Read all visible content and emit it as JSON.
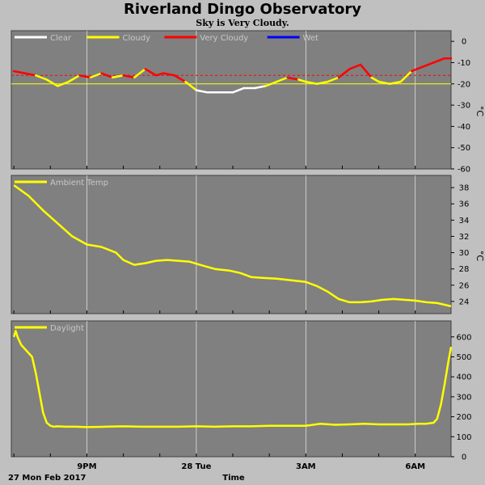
{
  "title": "Riverland Dingo Observatory",
  "subtitle": "Sky is Very Cloudy.",
  "x_axis": {
    "label": "Time",
    "date_label": "27 Mon Feb 2017",
    "ticks": [
      {
        "label": "9PM",
        "hour": 21
      },
      {
        "label": "28 Tue",
        "hour": 24
      },
      {
        "label": "3AM",
        "hour": 27
      },
      {
        "label": "6AM",
        "hour": 30
      }
    ],
    "hour_range": [
      18.93,
      30.98
    ]
  },
  "colors": {
    "background": "#c0c0c0",
    "plot_bg": "#808080",
    "grid": "#ffffff",
    "clear": "#ffffff",
    "cloudy": "#ffff00",
    "very_cloudy": "#ff0000",
    "wet": "#0000ff",
    "threshold": "#ff0000"
  },
  "chart_data": [
    {
      "type": "line",
      "name": "sky",
      "unit": "°C",
      "ylim": [
        -60,
        5
      ],
      "yticks": [
        0,
        -10,
        -20,
        -30,
        -40,
        -50,
        -60
      ],
      "legend": [
        {
          "label": "Clear",
          "color": "#ffffff"
        },
        {
          "label": "Cloudy",
          "color": "#ffff00"
        },
        {
          "label": "Very Cloudy",
          "color": "#ff0000"
        },
        {
          "label": "Wet",
          "color": "#0000ff"
        }
      ],
      "thresholds": [
        -16,
        -20
      ],
      "x": [
        19.0,
        19.3,
        19.6,
        19.9,
        20.2,
        20.5,
        20.8,
        21.1,
        21.4,
        21.7,
        22.0,
        22.3,
        22.6,
        22.9,
        23.1,
        23.4,
        23.7,
        24.0,
        24.3,
        24.6,
        24.8,
        25.0,
        25.3,
        25.6,
        25.9,
        26.2,
        26.5,
        26.8,
        27.0,
        27.3,
        27.6,
        27.9,
        28.2,
        28.5,
        28.8,
        29.0,
        29.3,
        29.6,
        29.9,
        30.2,
        30.5,
        30.8,
        30.98
      ],
      "y": [
        -14,
        -15,
        -16,
        -18,
        -21,
        -19,
        -16,
        -17,
        -15,
        -17,
        -16,
        -17,
        -13,
        -16,
        -15,
        -16,
        -19,
        -23,
        -24,
        -24,
        -24,
        -24,
        -22,
        -22,
        -21,
        -19,
        -17,
        -18,
        -19,
        -20,
        -19,
        -17,
        -13,
        -11,
        -17,
        -19,
        -20,
        -19,
        -14,
        -12,
        -10,
        -8,
        -8
      ],
      "state": [
        "very_cloudy",
        "very_cloudy",
        "cloudy",
        "cloudy",
        "cloudy",
        "cloudy",
        "very_cloudy",
        "cloudy",
        "very_cloudy",
        "cloudy",
        "very_cloudy",
        "cloudy",
        "very_cloudy",
        "very_cloudy",
        "very_cloudy",
        "very_cloudy",
        "cloudy",
        "clear",
        "clear",
        "clear",
        "clear",
        "clear",
        "clear",
        "clear",
        "cloudy",
        "cloudy",
        "very_cloudy",
        "cloudy",
        "cloudy",
        "cloudy",
        "cloudy",
        "very_cloudy",
        "very_cloudy",
        "very_cloudy",
        "cloudy",
        "cloudy",
        "cloudy",
        "cloudy",
        "very_cloudy",
        "very_cloudy",
        "very_cloudy",
        "very_cloudy",
        "very_cloudy"
      ]
    },
    {
      "type": "line",
      "name": "ambient",
      "legend": [
        {
          "label": "Ambient Temp",
          "color": "#ffff00"
        }
      ],
      "unit": "°C",
      "ylim": [
        22.5,
        39.5
      ],
      "yticks": [
        38,
        36,
        34,
        32,
        30,
        28,
        26,
        24
      ],
      "x": [
        19.0,
        19.4,
        19.8,
        20.2,
        20.6,
        21.0,
        21.4,
        21.8,
        22.0,
        22.3,
        22.6,
        22.9,
        23.2,
        23.5,
        23.8,
        24.1,
        24.5,
        24.9,
        25.2,
        25.5,
        25.8,
        26.2,
        26.6,
        27.0,
        27.3,
        27.6,
        27.9,
        28.2,
        28.5,
        28.8,
        29.1,
        29.4,
        29.7,
        30.0,
        30.3,
        30.6,
        30.98
      ],
      "y": [
        38.3,
        37.0,
        35.2,
        33.6,
        32.0,
        31.0,
        30.7,
        30.0,
        29.1,
        28.5,
        28.7,
        29.0,
        29.1,
        29.0,
        28.9,
        28.5,
        28.0,
        27.8,
        27.5,
        27.0,
        26.9,
        26.8,
        26.6,
        26.4,
        25.9,
        25.2,
        24.3,
        23.9,
        23.9,
        24.0,
        24.2,
        24.3,
        24.2,
        24.1,
        23.9,
        23.8,
        23.4
      ]
    },
    {
      "type": "line",
      "name": "daylight",
      "legend": [
        {
          "label": "Daylight",
          "color": "#ffff00"
        }
      ],
      "unit": "",
      "ylim": [
        0,
        680
      ],
      "yticks": [
        600,
        500,
        400,
        300,
        200,
        100,
        0
      ],
      "x": [
        19.0,
        19.05,
        19.1,
        19.2,
        19.35,
        19.5,
        19.6,
        19.7,
        19.8,
        19.9,
        20.0,
        20.1,
        20.2,
        20.4,
        20.7,
        21.0,
        21.5,
        22.0,
        22.5,
        23.0,
        23.5,
        24.0,
        24.5,
        25.0,
        25.5,
        26.0,
        26.5,
        27.0,
        27.4,
        27.8,
        28.2,
        28.6,
        29.0,
        29.4,
        29.8,
        30.1,
        30.3,
        30.5,
        30.6,
        30.7,
        30.8,
        30.9,
        30.98
      ],
      "y": [
        600,
        630,
        600,
        560,
        530,
        500,
        420,
        320,
        220,
        170,
        155,
        150,
        152,
        150,
        150,
        148,
        150,
        152,
        150,
        150,
        150,
        152,
        150,
        152,
        152,
        155,
        155,
        155,
        165,
        160,
        162,
        165,
        162,
        162,
        162,
        165,
        165,
        170,
        190,
        260,
        360,
        470,
        550
      ]
    }
  ]
}
